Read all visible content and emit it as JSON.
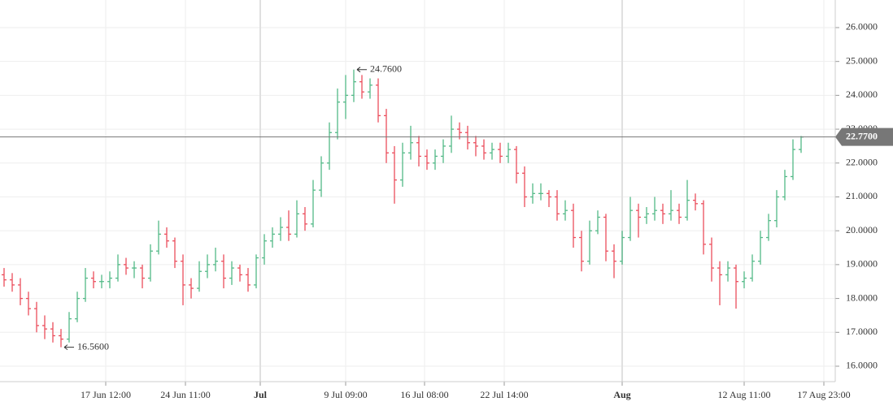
{
  "chart_data": {
    "type": "ohlc",
    "open": [
      18.7,
      18.55,
      18.4,
      18.0,
      17.7,
      17.2,
      17.1,
      16.9,
      16.8,
      17.4,
      18.0,
      18.6,
      18.5,
      18.5,
      18.6,
      19.0,
      18.9,
      18.9,
      18.6,
      19.4,
      19.9,
      19.7,
      19.1,
      18.4,
      18.3,
      18.8,
      19.0,
      19.1,
      18.6,
      18.9,
      18.7,
      18.4,
      19.2,
      19.7,
      19.9,
      20.1,
      19.9,
      20.5,
      20.2,
      21.2,
      22.0,
      22.9,
      23.8,
      24.0,
      24.4,
      24.1,
      24.3,
      23.4,
      22.3,
      21.5,
      22.3,
      22.6,
      22.2,
      22.0,
      22.2,
      22.5,
      23.0,
      22.9,
      22.6,
      22.5,
      22.3,
      22.4,
      22.2,
      22.4,
      21.7,
      21.0,
      21.1,
      21.1,
      21.0,
      20.5,
      20.6,
      19.8,
      19.1,
      20.0,
      20.4,
      19.4,
      19.1,
      19.8,
      20.6,
      20.4,
      20.5,
      20.6,
      20.5,
      20.6,
      20.4,
      20.9,
      20.8,
      19.6,
      18.9,
      18.7,
      18.9,
      18.5,
      18.6,
      19.1,
      19.8,
      20.3,
      21.0,
      21.6,
      22.4
    ],
    "high": [
      18.9,
      18.75,
      18.6,
      18.2,
      17.9,
      17.5,
      17.3,
      17.1,
      17.6,
      18.2,
      18.9,
      18.8,
      18.7,
      18.8,
      19.3,
      19.2,
      19.1,
      19.0,
      19.6,
      20.3,
      20.1,
      19.8,
      19.3,
      18.6,
      19.1,
      19.3,
      19.5,
      19.3,
      19.1,
      19.0,
      18.9,
      19.3,
      19.9,
      20.1,
      20.4,
      20.6,
      20.9,
      20.7,
      21.5,
      22.2,
      23.2,
      24.2,
      24.6,
      24.76,
      24.6,
      24.5,
      24.5,
      23.6,
      22.5,
      22.6,
      23.1,
      22.8,
      22.4,
      22.4,
      22.7,
      23.4,
      23.2,
      23.1,
      22.8,
      22.7,
      22.6,
      22.6,
      22.6,
      22.5,
      21.9,
      21.4,
      21.4,
      21.2,
      21.2,
      20.9,
      20.8,
      20.0,
      20.3,
      20.6,
      20.5,
      19.6,
      20.0,
      21.0,
      20.8,
      20.7,
      21.0,
      20.8,
      21.2,
      20.8,
      21.5,
      21.1,
      20.9,
      19.8,
      19.1,
      19.1,
      19.0,
      18.8,
      19.3,
      20.0,
      20.5,
      21.2,
      21.8,
      22.7,
      22.8
    ],
    "low": [
      18.35,
      18.2,
      17.8,
      17.5,
      17.0,
      16.8,
      16.7,
      16.56,
      16.7,
      17.3,
      17.9,
      18.3,
      18.3,
      18.3,
      18.5,
      18.7,
      18.6,
      18.3,
      18.5,
      19.3,
      19.5,
      18.9,
      17.8,
      18.0,
      18.2,
      18.6,
      18.8,
      18.3,
      18.4,
      18.5,
      18.2,
      18.3,
      19.0,
      19.5,
      19.7,
      19.7,
      19.8,
      20.0,
      20.1,
      21.0,
      21.8,
      22.7,
      23.3,
      23.8,
      23.9,
      23.9,
      23.2,
      22.0,
      20.8,
      21.3,
      22.1,
      21.9,
      21.8,
      21.8,
      22.0,
      22.3,
      22.7,
      22.4,
      22.2,
      22.1,
      22.1,
      22.0,
      22.0,
      21.4,
      20.7,
      20.8,
      20.9,
      20.7,
      20.3,
      20.3,
      19.5,
      18.8,
      19.0,
      19.9,
      19.1,
      18.6,
      19.0,
      19.7,
      19.8,
      20.2,
      20.3,
      20.2,
      20.3,
      20.2,
      20.3,
      20.6,
      19.3,
      18.5,
      17.8,
      18.5,
      17.7,
      18.3,
      18.5,
      19.0,
      19.7,
      20.1,
      20.9,
      21.5,
      22.3
    ],
    "close": [
      18.55,
      18.4,
      18.0,
      17.7,
      17.2,
      17.1,
      16.9,
      16.8,
      17.4,
      18.0,
      18.6,
      18.5,
      18.5,
      18.6,
      19.0,
      18.9,
      18.9,
      18.6,
      19.4,
      19.9,
      19.7,
      19.1,
      18.4,
      18.3,
      18.8,
      19.0,
      19.1,
      18.6,
      18.9,
      18.7,
      18.4,
      19.2,
      19.7,
      19.9,
      20.1,
      19.9,
      20.5,
      20.2,
      21.2,
      22.0,
      22.9,
      23.8,
      24.0,
      24.4,
      24.1,
      24.3,
      23.4,
      22.3,
      21.5,
      22.3,
      22.6,
      22.2,
      22.0,
      22.2,
      22.5,
      23.0,
      22.9,
      22.6,
      22.5,
      22.3,
      22.4,
      22.2,
      22.4,
      21.7,
      21.0,
      21.1,
      21.1,
      21.0,
      20.5,
      20.6,
      19.8,
      19.1,
      20.0,
      20.4,
      19.4,
      19.1,
      19.8,
      20.6,
      20.4,
      20.5,
      20.6,
      20.5,
      20.6,
      20.4,
      20.9,
      20.8,
      19.6,
      18.9,
      18.7,
      18.9,
      18.5,
      18.6,
      19.1,
      19.8,
      20.3,
      21.0,
      21.6,
      22.4,
      22.77
    ],
    "up_color": "#53b987",
    "down_color": "#eb4d5c",
    "max_label": "24.7600",
    "min_label": "16.5600",
    "last_label": "22.7700",
    "xlim": [
      0,
      102.7
    ],
    "ylim": [
      15.544,
      26.815
    ],
    "xticks": [
      {
        "value": 13.0,
        "label": "17 Jun 12:00"
      },
      {
        "value": 22.8,
        "label": "24 Jun 11:00"
      },
      {
        "value": 32.0,
        "label": "Jul"
      },
      {
        "value": 42.5,
        "label": "9 Jul 09:00"
      },
      {
        "value": 52.2,
        "label": "16 Jul 08:00"
      },
      {
        "value": 62.0,
        "label": "22 Jul 14:00"
      },
      {
        "value": 76.5,
        "label": "Aug"
      },
      {
        "value": 91.5,
        "label": "12 Aug 11:00"
      },
      {
        "value": 101.3,
        "label": "17 Aug 23:00"
      }
    ],
    "yticks": [
      {
        "value": 16,
        "label": "16.0000"
      },
      {
        "value": 17,
        "label": "17.0000"
      },
      {
        "value": 18,
        "label": "18.0000"
      },
      {
        "value": 19,
        "label": "19.0000"
      },
      {
        "value": 20,
        "label": "20.0000"
      },
      {
        "value": 21,
        "label": "21.0000"
      },
      {
        "value": 22,
        "label": "22.0000"
      },
      {
        "value": 23,
        "label": "23.0000"
      },
      {
        "value": 24,
        "label": "24.0000"
      },
      {
        "value": 25,
        "label": "25.0000"
      },
      {
        "value": 26,
        "label": "26.0000"
      }
    ],
    "grid": true
  }
}
